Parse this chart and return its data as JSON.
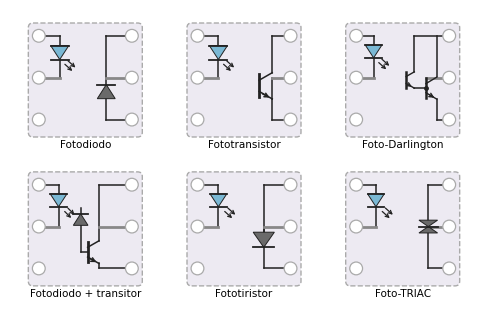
{
  "labels": [
    "Fotodiodo",
    "Fototransistor",
    "Foto-Darlington",
    "Fotodiodo + transitor",
    "Fototiristor",
    "Foto-TRIAC"
  ],
  "bg_box_color": "#edeaf2",
  "led_fill": "#7ab8d4",
  "diode_fill": "#6a6a6a",
  "line_color": "#222222",
  "gray_line": "#888888",
  "circle_edge": "#aaaaaa",
  "font_size": 7.5
}
